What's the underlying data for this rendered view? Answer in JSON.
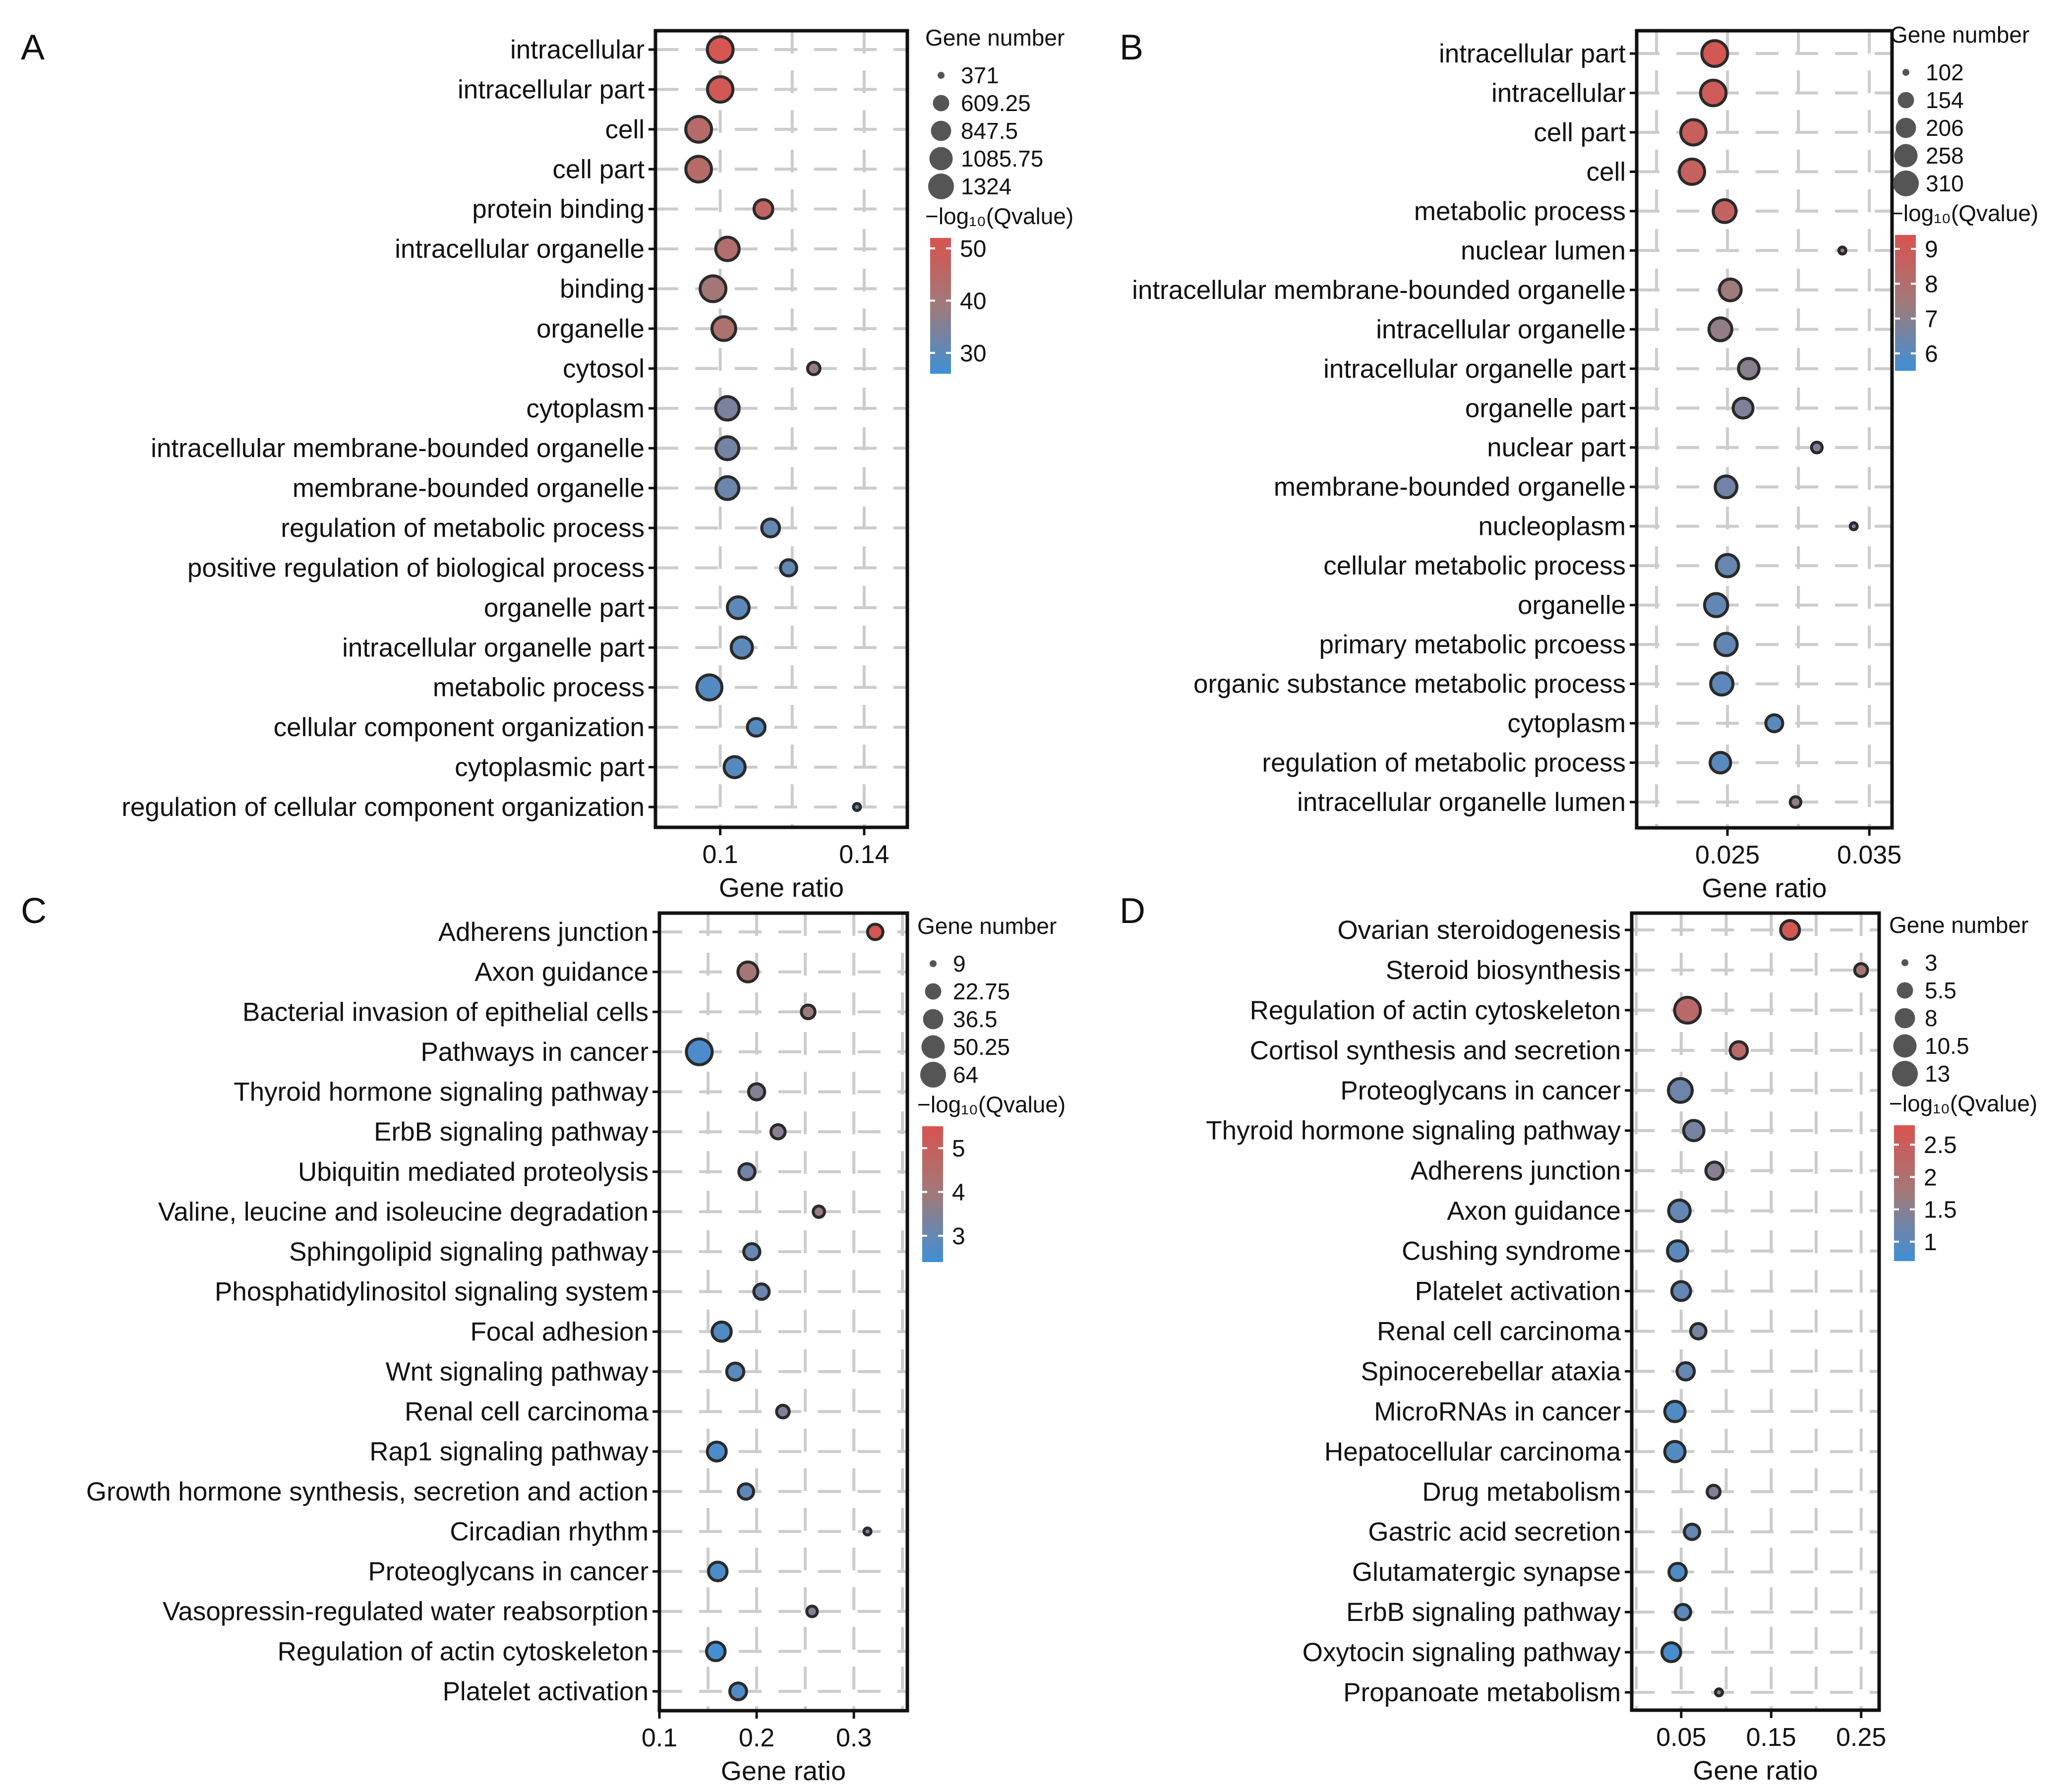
{
  "colors": {
    "high": "#d9534f",
    "mid": "#a07a7a",
    "low": "#3f8fd6",
    "grid": "#cccccc",
    "axis": "#111111",
    "dot_edge": "#2a2a2a"
  },
  "chart_data": [
    {
      "panel_label": "A",
      "type": "scatter",
      "xlabel": "Gene ratio",
      "ylabel": "",
      "xlim": [
        0.082,
        0.152
      ],
      "xticks": [
        "0.1",
        "0.14"
      ],
      "xtick_values": [
        0.1,
        0.14
      ],
      "size_legend": {
        "title": "Gene number",
        "values": [
          "371",
          "609.25",
          "847.5",
          "1085.75",
          "1324"
        ],
        "min": 371,
        "max": 1324
      },
      "color_legend": {
        "title": "−log₁₀(Qvalue)",
        "ticks": [
          "50",
          "40",
          "30"
        ],
        "tick_values": [
          50,
          40,
          30
        ],
        "min": 26,
        "max": 52
      },
      "terms": [
        {
          "name": "intracellular",
          "x": 0.1,
          "size": 1324,
          "q": 51
        },
        {
          "name": "intracellular part",
          "x": 0.1,
          "size": 1290,
          "q": 50
        },
        {
          "name": "cell",
          "x": 0.094,
          "size": 1324,
          "q": 44
        },
        {
          "name": "cell part",
          "x": 0.094,
          "size": 1310,
          "q": 44
        },
        {
          "name": "protein binding",
          "x": 0.112,
          "size": 750,
          "q": 46
        },
        {
          "name": "intracellular organelle",
          "x": 0.102,
          "size": 1100,
          "q": 43
        },
        {
          "name": "binding",
          "x": 0.098,
          "size": 1324,
          "q": 40
        },
        {
          "name": "organelle",
          "x": 0.101,
          "size": 1130,
          "q": 42
        },
        {
          "name": "cytosol",
          "x": 0.126,
          "size": 450,
          "q": 38
        },
        {
          "name": "cytoplasm",
          "x": 0.102,
          "size": 1100,
          "q": 34
        },
        {
          "name": "intracellular membrane-bounded organelle",
          "x": 0.102,
          "size": 1050,
          "q": 33
        },
        {
          "name": "membrane-bounded organelle",
          "x": 0.102,
          "size": 1050,
          "q": 32
        },
        {
          "name": "regulation of metabolic process",
          "x": 0.114,
          "size": 690,
          "q": 31
        },
        {
          "name": "positive regulation of biological process",
          "x": 0.119,
          "size": 600,
          "q": 31
        },
        {
          "name": "organelle part",
          "x": 0.105,
          "size": 960,
          "q": 30
        },
        {
          "name": "intracellular organelle part",
          "x": 0.106,
          "size": 920,
          "q": 30
        },
        {
          "name": "metabolic process",
          "x": 0.097,
          "size": 1250,
          "q": 29
        },
        {
          "name": "cellular component organization",
          "x": 0.11,
          "size": 680,
          "q": 29
        },
        {
          "name": "cytoplasmic part",
          "x": 0.104,
          "size": 900,
          "q": 29
        },
        {
          "name": "regulation of cellular component organization",
          "x": 0.138,
          "size": 371,
          "q": 30
        }
      ]
    },
    {
      "panel_label": "B",
      "type": "scatter",
      "xlabel": "Gene ratio",
      "ylabel": "",
      "xlim": [
        0.0186,
        0.0366
      ],
      "xticks": [
        "0.025",
        "0.035"
      ],
      "xtick_values": [
        0.025,
        0.035
      ],
      "size_legend": {
        "title": "Gene number",
        "values": [
          "102",
          "154",
          "206",
          "258",
          "310"
        ],
        "min": 102,
        "max": 310
      },
      "color_legend": {
        "title": "−log₁₀(Qvalue)",
        "ticks": [
          "9",
          "8",
          "7",
          "6"
        ],
        "tick_values": [
          9,
          8,
          7,
          6
        ],
        "min": 5.5,
        "max": 9.4
      },
      "terms": [
        {
          "name": "intracellular part",
          "x": 0.0241,
          "size": 310,
          "q": 9.2
        },
        {
          "name": "intracellular",
          "x": 0.024,
          "size": 305,
          "q": 9.0
        },
        {
          "name": "cell part",
          "x": 0.0226,
          "size": 300,
          "q": 8.8
        },
        {
          "name": "cell",
          "x": 0.0225,
          "size": 300,
          "q": 8.7
        },
        {
          "name": "metabolic process",
          "x": 0.0248,
          "size": 250,
          "q": 8.6
        },
        {
          "name": "nuclear lumen",
          "x": 0.0331,
          "size": 102,
          "q": 7.6
        },
        {
          "name": "intracellular membrane-bounded organelle",
          "x": 0.0252,
          "size": 230,
          "q": 7.4
        },
        {
          "name": "intracellular organelle",
          "x": 0.0245,
          "size": 250,
          "q": 7.2
        },
        {
          "name": "intracellular organelle part",
          "x": 0.0265,
          "size": 210,
          "q": 7.0
        },
        {
          "name": "organelle part",
          "x": 0.0261,
          "size": 200,
          "q": 6.8
        },
        {
          "name": "nuclear part",
          "x": 0.0313,
          "size": 110,
          "q": 6.8
        },
        {
          "name": "membrane-bounded organelle",
          "x": 0.0249,
          "size": 230,
          "q": 6.5
        },
        {
          "name": "nucleoplasm",
          "x": 0.0339,
          "size": 102,
          "q": 6.6
        },
        {
          "name": "cellular metabolic process",
          "x": 0.025,
          "size": 240,
          "q": 6.3
        },
        {
          "name": "organelle",
          "x": 0.0242,
          "size": 255,
          "q": 6.2
        },
        {
          "name": "primary metabolic prcoess",
          "x": 0.0249,
          "size": 240,
          "q": 6.2
        },
        {
          "name": "organic substance metabolic process",
          "x": 0.0246,
          "size": 240,
          "q": 6.1
        },
        {
          "name": "cytoplasm",
          "x": 0.0283,
          "size": 160,
          "q": 6.0
        },
        {
          "name": "regulation of metabolic process",
          "x": 0.0245,
          "size": 210,
          "q": 6.0
        },
        {
          "name": "intracellular organelle lumen",
          "x": 0.0298,
          "size": 110,
          "q": 7.2
        }
      ]
    },
    {
      "panel_label": "C",
      "type": "scatter",
      "xlabel": "Gene ratio",
      "ylabel": "",
      "xlim": [
        0.1,
        0.355
      ],
      "xticks": [
        "0.1",
        "0.2",
        "0.3"
      ],
      "xtick_values": [
        0.1,
        0.2,
        0.3
      ],
      "size_legend": {
        "title": "Gene number",
        "values": [
          "9",
          "22.75",
          "36.5",
          "50.25",
          "64"
        ],
        "min": 9,
        "max": 64
      },
      "color_legend": {
        "title": "−log₁₀(Qvalue)",
        "ticks": [
          "5",
          "4",
          "3"
        ],
        "tick_values": [
          5,
          4,
          3
        ],
        "min": 2.4,
        "max": 5.5
      },
      "terms": [
        {
          "name": "Adherens junction",
          "x": 0.322,
          "size": 20,
          "q": 5.4
        },
        {
          "name": "Axon guidance",
          "x": 0.191,
          "size": 35,
          "q": 4.1
        },
        {
          "name": "Bacterial invasion of epithelial cells",
          "x": 0.253,
          "size": 16,
          "q": 3.9
        },
        {
          "name": "Pathways in cancer",
          "x": 0.141,
          "size": 64,
          "q": 2.6
        },
        {
          "name": "Thyroid hormone signaling pathway",
          "x": 0.2,
          "size": 22,
          "q": 3.5
        },
        {
          "name": "ErbB signaling pathway",
          "x": 0.222,
          "size": 17,
          "q": 3.6
        },
        {
          "name": "Ubiquitin mediated proteolysis",
          "x": 0.19,
          "size": 22,
          "q": 3.2
        },
        {
          "name": "Valine, leucine and isoleucine degradation",
          "x": 0.264,
          "size": 12,
          "q": 3.8
        },
        {
          "name": "Sphingolipid signaling pathway",
          "x": 0.195,
          "size": 22,
          "q": 3.0
        },
        {
          "name": "Phosphatidylinositol signaling system",
          "x": 0.205,
          "size": 20,
          "q": 3.1
        },
        {
          "name": "Focal adhesion",
          "x": 0.164,
          "size": 32,
          "q": 2.7
        },
        {
          "name": "Wnt signaling pathway",
          "x": 0.178,
          "size": 25,
          "q": 2.8
        },
        {
          "name": "Renal cell carcinoma",
          "x": 0.227,
          "size": 14,
          "q": 3.4
        },
        {
          "name": "Rap1 signaling pathway",
          "x": 0.159,
          "size": 31,
          "q": 2.6
        },
        {
          "name": "Growth hormone synthesis, secretion and action",
          "x": 0.189,
          "size": 20,
          "q": 2.9
        },
        {
          "name": "Circadian rhythm",
          "x": 0.314,
          "size": 9,
          "q": 3.4
        },
        {
          "name": "Proteoglycans in cancer",
          "x": 0.16,
          "size": 30,
          "q": 2.6
        },
        {
          "name": "Vasopressin-regulated water reabsorption",
          "x": 0.257,
          "size": 11,
          "q": 3.5
        },
        {
          "name": "Regulation of actin cytoskeleton",
          "x": 0.158,
          "size": 30,
          "q": 2.5
        },
        {
          "name": "Platelet activation",
          "x": 0.181,
          "size": 24,
          "q": 2.7
        }
      ]
    },
    {
      "panel_label": "D",
      "type": "scatter",
      "xlabel": "Gene ratio",
      "ylabel": "",
      "xlim": [
        -0.005,
        0.27
      ],
      "xticks": [
        "0.05",
        "0.15",
        "0.25"
      ],
      "xtick_values": [
        0.05,
        0.15,
        0.25
      ],
      "size_legend": {
        "title": "Gene number",
        "values": [
          "3",
          "5.5",
          "8",
          "10.5",
          "13"
        ],
        "min": 3,
        "max": 13
      },
      "color_legend": {
        "title": "−log₁₀(Qvalue)",
        "ticks": [
          "2.5",
          "2",
          "1.5",
          "1"
        ],
        "tick_values": [
          2.5,
          2,
          1.5,
          1
        ],
        "min": 0.7,
        "max": 2.8
      },
      "terms": [
        {
          "name": "Ovarian steroidogenesis",
          "x": 0.171,
          "size": 7,
          "q": 2.7
        },
        {
          "name": "Steroid biosynthesis",
          "x": 0.25,
          "size": 4,
          "q": 1.9
        },
        {
          "name": "Regulation of actin cytoskeleton",
          "x": 0.057,
          "size": 13,
          "q": 2.2
        },
        {
          "name": "Cortisol synthesis and secretion",
          "x": 0.114,
          "size": 6,
          "q": 2.2
        },
        {
          "name": "Proteoglycans in cancer",
          "x": 0.049,
          "size": 11,
          "q": 1.2
        },
        {
          "name": "Thyroid hormone signaling pathway",
          "x": 0.064,
          "size": 8,
          "q": 1.3
        },
        {
          "name": "Adherens junction",
          "x": 0.087,
          "size": 6,
          "q": 1.5
        },
        {
          "name": "Axon guidance",
          "x": 0.048,
          "size": 9,
          "q": 1.1
        },
        {
          "name": "Cushing syndrome",
          "x": 0.046,
          "size": 8,
          "q": 1.0
        },
        {
          "name": "Platelet activation",
          "x": 0.05,
          "size": 7,
          "q": 1.1
        },
        {
          "name": "Renal cell carcinoma",
          "x": 0.069,
          "size": 5,
          "q": 1.3
        },
        {
          "name": "Spinocerebellar ataxia",
          "x": 0.055,
          "size": 6,
          "q": 1.1
        },
        {
          "name": "MicroRNAs in cancer",
          "x": 0.043,
          "size": 8,
          "q": 0.9
        },
        {
          "name": "Hepatocellular carcinoma",
          "x": 0.043,
          "size": 8,
          "q": 0.9
        },
        {
          "name": "Drug metabolism",
          "x": 0.086,
          "size": 4,
          "q": 1.4
        },
        {
          "name": "Gastric acid secretion",
          "x": 0.062,
          "size": 5,
          "q": 1.1
        },
        {
          "name": "Glutamatergic synapse",
          "x": 0.046,
          "size": 6,
          "q": 0.9
        },
        {
          "name": "ErbB signaling pathway",
          "x": 0.052,
          "size": 5,
          "q": 1.0
        },
        {
          "name": "Oxytocin signaling pathway",
          "x": 0.039,
          "size": 7,
          "q": 0.8
        },
        {
          "name": "Propanoate metabolism",
          "x": 0.092,
          "size": 3,
          "q": 1.4
        }
      ]
    }
  ]
}
